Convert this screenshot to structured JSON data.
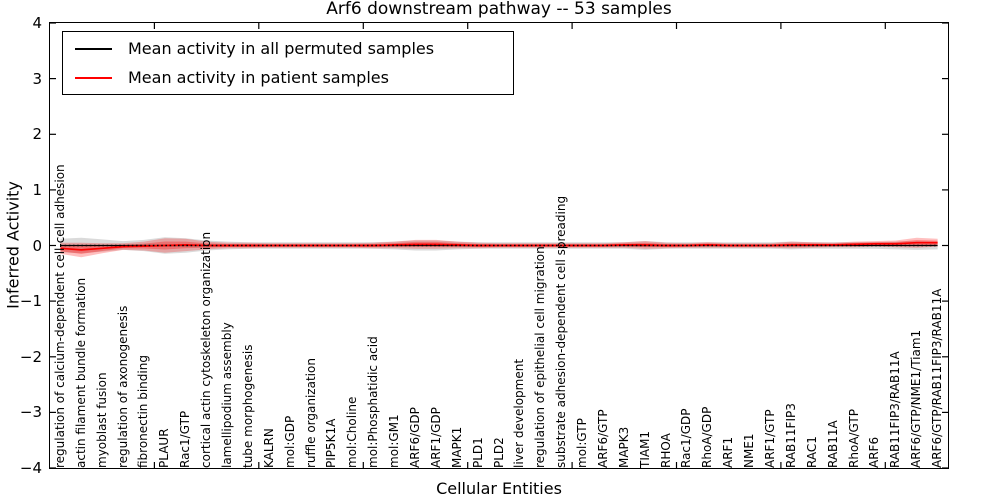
{
  "title": "Arf6 downstream pathway -- 53 samples",
  "axes": {
    "ylabel": "Inferred Activity",
    "xlabel": "Cellular Entities",
    "yticks": [
      "4",
      "3",
      "2",
      "1",
      "0",
      "−1",
      "−2",
      "−3",
      "−4"
    ],
    "xtick_interval": 5
  },
  "legend": {
    "items": [
      {
        "label": "Mean activity in all permuted samples",
        "color": "#000000",
        "swatch": "line"
      },
      {
        "label": "Mean activity in patient samples",
        "color": "#ff0000",
        "swatch": "line"
      }
    ]
  },
  "colors": {
    "patient_line": "#ff0000",
    "permuted_line": "#000000",
    "permuted_band": "#bbbbbb",
    "frame": "#000000"
  },
  "chart_data": {
    "type": "line",
    "title": "Arf6 downstream pathway -- 53 samples",
    "xlabel": "Cellular Entities",
    "ylabel": "Inferred Activity",
    "ylim": [
      -4,
      4
    ],
    "grid": false,
    "legend_position": "upper left",
    "zero_reference_line": {
      "y": 0,
      "style": "dotted",
      "color": "#000000"
    },
    "categories": [
      "regulation of calcium-dependent cell-cell adhesion",
      "actin filament bundle formation",
      "myoblast fusion",
      "regulation of axonogenesis",
      "fibronectin binding",
      "PLAUR",
      "Rac1/GTP",
      "cortical actin cytoskeleton organization",
      "lamellipodium assembly",
      "tube morphogenesis",
      "KALRN",
      "mol:GDP",
      "ruffle organization",
      "PIP5K1A",
      "mol:Choline",
      "mol:Phosphatidic acid",
      "mol:GM1",
      "ARF6/GDP",
      "ARF1/GDP",
      "MAPK1",
      "PLD1",
      "PLD2",
      "liver development",
      "regulation of epithelial cell migration",
      "substrate adhesion-dependent cell spreading",
      "mol:GTP",
      "ARF6/GTP",
      "MAPK3",
      "TIAM1",
      "RHOA",
      "Rac1/GDP",
      "RhoA/GDP",
      "ARF1",
      "NME1",
      "ARF1/GTP",
      "RAB11FIP3",
      "RAC1",
      "RAB11A",
      "RhoA/GTP",
      "ARF6",
      "RAB11FIP3/RAB11A",
      "ARF6/GTP/NME1/Tiam1",
      "ARF6/GTP/RAB11FIP3/RAB11A"
    ],
    "series": [
      {
        "name": "Mean activity in all permuted samples",
        "color": "#000000",
        "values": [
          0,
          0,
          0,
          0,
          0,
          0,
          0,
          0,
          0,
          0,
          0,
          0,
          0,
          0,
          0,
          0,
          0,
          0,
          0,
          0,
          0,
          0,
          0,
          0,
          0,
          0,
          0,
          0,
          0,
          0,
          0,
          0,
          0,
          0,
          0,
          0,
          0,
          0,
          0,
          0,
          0,
          0,
          0
        ],
        "band_halfwidth": [
          0.12,
          0.14,
          0.11,
          0.08,
          0.1,
          0.15,
          0.13,
          0.09,
          0.07,
          0.06,
          0.06,
          0.06,
          0.06,
          0.06,
          0.06,
          0.06,
          0.07,
          0.09,
          0.09,
          0.07,
          0.06,
          0.06,
          0.06,
          0.06,
          0.06,
          0.06,
          0.06,
          0.06,
          0.08,
          0.06,
          0.06,
          0.06,
          0.06,
          0.06,
          0.06,
          0.07,
          0.06,
          0.06,
          0.06,
          0.06,
          0.07,
          0.08,
          0.07
        ]
      },
      {
        "name": "Mean activity in patient samples",
        "color": "#ff0000",
        "values": [
          -0.05,
          -0.08,
          -0.05,
          -0.02,
          -0.01,
          0,
          0.01,
          0,
          0,
          0,
          0,
          0,
          0,
          0,
          0,
          0,
          0.01,
          0.02,
          0.02,
          0.01,
          0,
          0,
          0,
          0,
          0,
          0,
          0,
          0.01,
          0.01,
          0,
          0,
          0.01,
          0,
          0,
          0,
          0.01,
          0.01,
          0.01,
          0.02,
          0.03,
          0.03,
          0.05,
          0.05
        ],
        "band_halfwidth": [
          0.1,
          0.13,
          0.09,
          0.06,
          0.08,
          0.13,
          0.11,
          0.07,
          0.05,
          0.05,
          0.04,
          0.04,
          0.04,
          0.04,
          0.04,
          0.05,
          0.06,
          0.08,
          0.08,
          0.06,
          0.05,
          0.04,
          0.04,
          0.04,
          0.04,
          0.04,
          0.04,
          0.05,
          0.07,
          0.05,
          0.04,
          0.05,
          0.04,
          0.04,
          0.04,
          0.06,
          0.05,
          0.04,
          0.05,
          0.05,
          0.06,
          0.09,
          0.07
        ]
      }
    ]
  }
}
